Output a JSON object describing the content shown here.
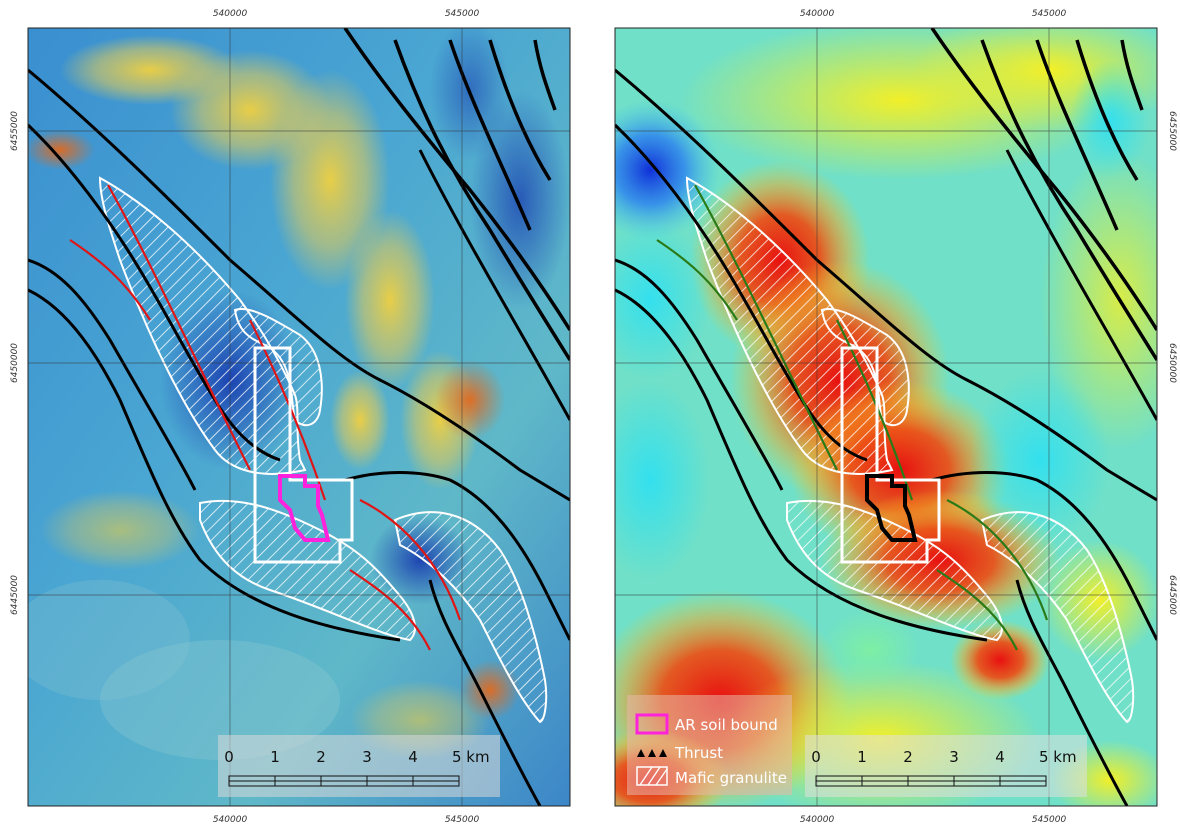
{
  "panels": [
    {
      "name": "left-panel",
      "style": "shaded-relief",
      "boundary_color": "#ff22dd"
    },
    {
      "name": "right-panel",
      "style": "heatmap",
      "boundary_color": "#000000"
    }
  ],
  "grid": {
    "easting_labels": [
      "540000",
      "545000"
    ],
    "northing_labels": [
      "6455000",
      "6450000",
      "6445000"
    ]
  },
  "scale_bar": {
    "ticks": [
      "0",
      "1",
      "2",
      "3",
      "4",
      "5 km"
    ]
  },
  "legend": {
    "items": [
      {
        "icon": "soil-bound-swatch-icon",
        "label": "AR soil bound"
      },
      {
        "icon": "thrust-symbol-icon",
        "label": "Thrust"
      },
      {
        "icon": "hatch-swatch-icon",
        "label": "Mafic granulite"
      }
    ]
  },
  "colors": {
    "fold_axis_left": "#e01515",
    "fold_axis_right": "#2a7a18",
    "fault": "#000000",
    "granulite_outline": "#ffffff"
  }
}
